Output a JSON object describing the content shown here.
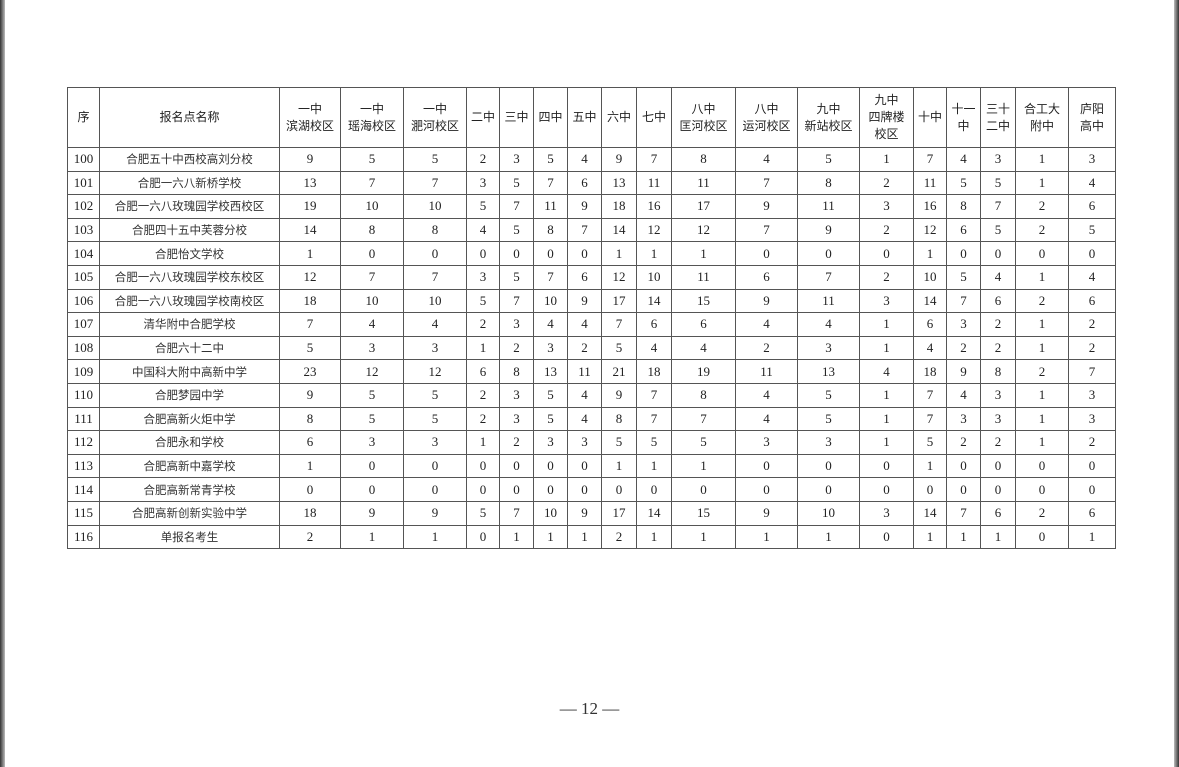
{
  "table": {
    "headers": [
      "序",
      "报名点名称",
      "一中\n滨湖校区",
      "一中\n瑶海校区",
      "一中\n淝河校区",
      "二中",
      "三中",
      "四中",
      "五中",
      "六中",
      "七中",
      "八中\n匡河校区",
      "八中\n运河校区",
      "九中\n新站校区",
      "九中\n四牌楼\n校区",
      "十中",
      "十一\n中",
      "三十\n二中",
      "合工大\n附中",
      "庐阳\n高中"
    ],
    "rows": [
      [
        "100",
        "合肥五十中西校高刘分校",
        "9",
        "5",
        "5",
        "2",
        "3",
        "5",
        "4",
        "9",
        "7",
        "8",
        "4",
        "5",
        "1",
        "7",
        "4",
        "3",
        "1",
        "3"
      ],
      [
        "101",
        "合肥一六八新桥学校",
        "13",
        "7",
        "7",
        "3",
        "5",
        "7",
        "6",
        "13",
        "11",
        "11",
        "7",
        "8",
        "2",
        "11",
        "5",
        "5",
        "1",
        "4"
      ],
      [
        "102",
        "合肥一六八玫瑰园学校西校区",
        "19",
        "10",
        "10",
        "5",
        "7",
        "11",
        "9",
        "18",
        "16",
        "17",
        "9",
        "11",
        "3",
        "16",
        "8",
        "7",
        "2",
        "6"
      ],
      [
        "103",
        "合肥四十五中芙蓉分校",
        "14",
        "8",
        "8",
        "4",
        "5",
        "8",
        "7",
        "14",
        "12",
        "12",
        "7",
        "9",
        "2",
        "12",
        "6",
        "5",
        "2",
        "5"
      ],
      [
        "104",
        "合肥怡文学校",
        "1",
        "0",
        "0",
        "0",
        "0",
        "0",
        "0",
        "1",
        "1",
        "1",
        "0",
        "0",
        "0",
        "1",
        "0",
        "0",
        "0",
        "0"
      ],
      [
        "105",
        "合肥一六八玫瑰园学校东校区",
        "12",
        "7",
        "7",
        "3",
        "5",
        "7",
        "6",
        "12",
        "10",
        "11",
        "6",
        "7",
        "2",
        "10",
        "5",
        "4",
        "1",
        "4"
      ],
      [
        "106",
        "合肥一六八玫瑰园学校南校区",
        "18",
        "10",
        "10",
        "5",
        "7",
        "10",
        "9",
        "17",
        "14",
        "15",
        "9",
        "11",
        "3",
        "14",
        "7",
        "6",
        "2",
        "6"
      ],
      [
        "107",
        "清华附中合肥学校",
        "7",
        "4",
        "4",
        "2",
        "3",
        "4",
        "4",
        "7",
        "6",
        "6",
        "4",
        "4",
        "1",
        "6",
        "3",
        "2",
        "1",
        "2"
      ],
      [
        "108",
        "合肥六十二中",
        "5",
        "3",
        "3",
        "1",
        "2",
        "3",
        "2",
        "5",
        "4",
        "4",
        "2",
        "3",
        "1",
        "4",
        "2",
        "2",
        "1",
        "2"
      ],
      [
        "109",
        "中国科大附中高新中学",
        "23",
        "12",
        "12",
        "6",
        "8",
        "13",
        "11",
        "21",
        "18",
        "19",
        "11",
        "13",
        "4",
        "18",
        "9",
        "8",
        "2",
        "7"
      ],
      [
        "110",
        "合肥梦园中学",
        "9",
        "5",
        "5",
        "2",
        "3",
        "5",
        "4",
        "9",
        "7",
        "8",
        "4",
        "5",
        "1",
        "7",
        "4",
        "3",
        "1",
        "3"
      ],
      [
        "111",
        "合肥高新火炬中学",
        "8",
        "5",
        "5",
        "2",
        "3",
        "5",
        "4",
        "8",
        "7",
        "7",
        "4",
        "5",
        "1",
        "7",
        "3",
        "3",
        "1",
        "3"
      ],
      [
        "112",
        "合肥永和学校",
        "6",
        "3",
        "3",
        "1",
        "2",
        "3",
        "3",
        "5",
        "5",
        "5",
        "3",
        "3",
        "1",
        "5",
        "2",
        "2",
        "1",
        "2"
      ],
      [
        "113",
        "合肥高新中嘉学校",
        "1",
        "0",
        "0",
        "0",
        "0",
        "0",
        "0",
        "1",
        "1",
        "1",
        "0",
        "0",
        "0",
        "1",
        "0",
        "0",
        "0",
        "0"
      ],
      [
        "114",
        "合肥高新常青学校",
        "0",
        "0",
        "0",
        "0",
        "0",
        "0",
        "0",
        "0",
        "0",
        "0",
        "0",
        "0",
        "0",
        "0",
        "0",
        "0",
        "0",
        "0"
      ],
      [
        "115",
        "合肥高新创新实验中学",
        "18",
        "9",
        "9",
        "5",
        "7",
        "10",
        "9",
        "17",
        "14",
        "15",
        "9",
        "10",
        "3",
        "14",
        "7",
        "6",
        "2",
        "6"
      ],
      [
        "116",
        "单报名考生",
        "2",
        "1",
        "1",
        "0",
        "1",
        "1",
        "1",
        "2",
        "1",
        "1",
        "1",
        "1",
        "0",
        "1",
        "1",
        "1",
        "0",
        "1"
      ]
    ]
  },
  "footer": {
    "page_number": "— 12 —"
  }
}
